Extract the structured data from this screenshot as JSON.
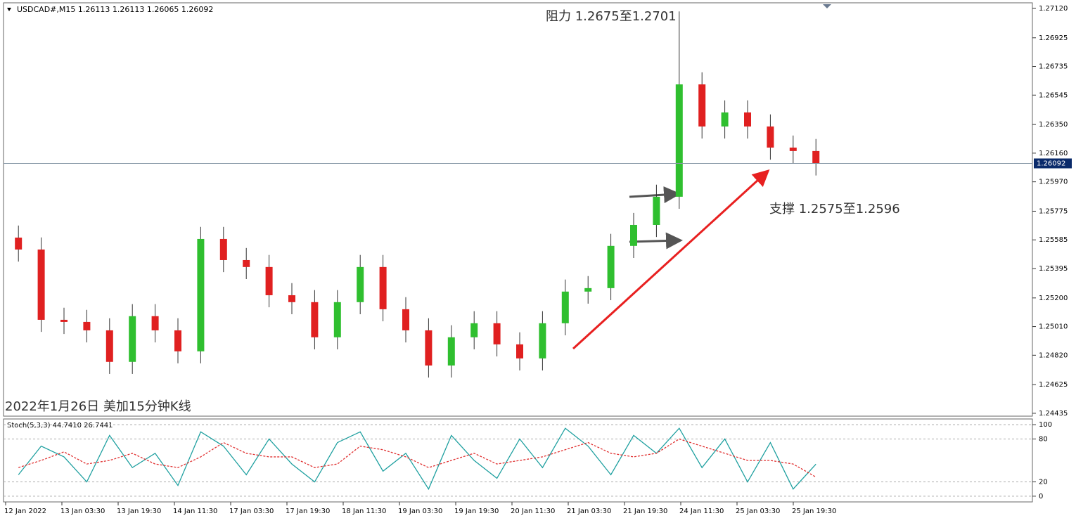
{
  "chart_data": [
    {
      "type": "candlestick",
      "title": "USDCAD#,M15  1.26113 1.26113 1.26065 1.26092",
      "annotations": [
        "阻力 1.2675至1.2701",
        "支撑 1.2575至1.2596",
        "2022年1月26日 美加15分钟K线"
      ],
      "last_price": 1.26092,
      "up_color": "#2fbf2f",
      "down_color": "#e02020",
      "wick_color": "#333333",
      "ylim": [
        1.24416,
        1.27157
      ],
      "yticks": [
        {
          "value": 1.2712,
          "label": "1.27120"
        },
        1.26925,
        1.26735,
        1.26545,
        {
          "value": 1.2635,
          "label": "1.26350"
        },
        {
          "value": 1.2616,
          "label": "1.26160"
        },
        {
          "value": 1.2597,
          "label": "1.25970"
        },
        1.25775,
        1.25585,
        1.25395,
        {
          "value": 1.252,
          "label": "1.25200"
        },
        {
          "value": 1.2501,
          "label": "1.25010"
        },
        {
          "value": 1.2482,
          "label": "1.24820"
        },
        1.24625,
        1.24435
      ],
      "xlabels": [
        "12 Jan 2022",
        "13 Jan 03:30",
        "13 Jan 19:30",
        "14 Jan 11:30",
        "17 Jan 03:30",
        "17 Jan 19:30",
        "18 Jan 11:30",
        "19 Jan 03:30",
        "19 Jan 19:30",
        "20 Jan 11:30",
        "21 Jan 03:30",
        "21 Jan 19:30",
        "24 Jan 11:30",
        "25 Jan 03:30",
        "25 Jan 19:30"
      ],
      "open": [
        1.256,
        1.25521,
        1.25055,
        1.25041,
        1.24985,
        1.24776,
        1.25079,
        1.24985,
        1.24846,
        1.25591,
        1.25451,
        1.25405,
        1.25218,
        1.25172,
        1.24939,
        1.25172,
        1.25405,
        1.25125,
        1.24985,
        1.24752,
        1.24939,
        1.25032,
        1.24892,
        1.24799,
        1.25032,
        1.25242,
        1.25265,
        1.25545,
        1.25684,
        1.25871,
        1.26616,
        1.26337,
        1.2643,
        1.26337,
        1.26197,
        1.26174
      ],
      "high": [
        1.2568,
        1.25601,
        1.25135,
        1.25121,
        1.25065,
        1.25159,
        1.25159,
        1.25065,
        1.25671,
        1.25671,
        1.25531,
        1.25485,
        1.25298,
        1.25252,
        1.25252,
        1.25485,
        1.25485,
        1.25205,
        1.25065,
        1.25019,
        1.25112,
        1.25112,
        1.24972,
        1.25112,
        1.25322,
        1.25345,
        1.25625,
        1.25764,
        1.25951,
        1.271,
        1.26696,
        1.2651,
        1.2651,
        1.26417,
        1.26277,
        1.26254
      ],
      "low": [
        1.25441,
        1.24975,
        1.24961,
        1.24905,
        1.24696,
        1.24696,
        1.24905,
        1.24766,
        1.24766,
        1.25371,
        1.25325,
        1.25138,
        1.25092,
        1.24859,
        1.24859,
        1.25092,
        1.25045,
        1.24905,
        1.24672,
        1.24672,
        1.24859,
        1.24812,
        1.24719,
        1.24719,
        1.24952,
        1.25162,
        1.25185,
        1.25465,
        1.25604,
        1.25791,
        1.26257,
        1.26257,
        1.26257,
        1.26117,
        1.26094,
        1.26012
      ],
      "close": [
        1.25521,
        1.25055,
        1.25041,
        1.24985,
        1.24776,
        1.25079,
        1.24985,
        1.24846,
        1.25591,
        1.25451,
        1.25405,
        1.25218,
        1.25172,
        1.24939,
        1.25172,
        1.25405,
        1.25125,
        1.24985,
        1.24752,
        1.24939,
        1.25032,
        1.24892,
        1.24799,
        1.25032,
        1.25242,
        1.25265,
        1.25545,
        1.25684,
        1.25871,
        1.26616,
        1.26337,
        1.2643,
        1.26337,
        1.26197,
        1.26174,
        1.26092
      ]
    },
    {
      "type": "line",
      "title": "Stoch(5,3,3) 44.7410 26.7441",
      "ylim": [
        -8,
        108
      ],
      "yticks": [
        100,
        80,
        20,
        0
      ],
      "series": [
        {
          "color": "#1fa0a0",
          "dash": false,
          "values": [
            30,
            70,
            55,
            20,
            85,
            40,
            60,
            15,
            90,
            70,
            30,
            80,
            45,
            20,
            75,
            90,
            35,
            60,
            10,
            85,
            50,
            25,
            80,
            40,
            95,
            70,
            30,
            85,
            60,
            95,
            40,
            80,
            20,
            75,
            10,
            44.741
          ]
        },
        {
          "color": "#e03030",
          "dash": true,
          "values": [
            40,
            50,
            62,
            45,
            50,
            60,
            45,
            40,
            55,
            75,
            60,
            55,
            55,
            40,
            45,
            70,
            65,
            55,
            40,
            50,
            60,
            45,
            50,
            55,
            65,
            75,
            60,
            55,
            60,
            80,
            70,
            60,
            50,
            50,
            45,
            26.7441
          ]
        }
      ]
    }
  ]
}
